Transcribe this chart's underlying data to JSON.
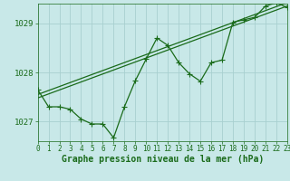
{
  "background_color": "#c8e8e8",
  "grid_color": "#a8d0d0",
  "line_color": "#1a6b1a",
  "title": "Graphe pression niveau de la mer (hPa)",
  "xlim": [
    0,
    23
  ],
  "ylim": [
    1026.6,
    1029.4
  ],
  "yticks": [
    1027,
    1028,
    1029
  ],
  "xticks": [
    0,
    1,
    2,
    3,
    4,
    5,
    6,
    7,
    8,
    9,
    10,
    11,
    12,
    13,
    14,
    15,
    16,
    17,
    18,
    19,
    20,
    21,
    22,
    23
  ],
  "series_main_x": [
    0,
    1,
    2,
    3,
    4,
    5,
    6,
    7,
    8,
    9,
    10,
    11,
    12,
    13,
    14,
    15,
    16,
    17,
    18,
    19,
    20,
    21,
    22,
    23
  ],
  "series_main_y": [
    1027.65,
    1027.3,
    1027.3,
    1027.25,
    1027.05,
    1026.95,
    1026.95,
    1026.67,
    1027.3,
    1027.83,
    1028.27,
    1028.7,
    1028.55,
    1028.2,
    1027.97,
    1027.82,
    1028.2,
    1028.25,
    1029.02,
    1029.07,
    1029.12,
    1029.35,
    1029.42,
    1029.32
  ],
  "series_trend1_x": [
    0,
    23
  ],
  "series_trend1_y": [
    1027.55,
    1029.42
  ],
  "series_trend2_x": [
    0,
    23
  ],
  "series_trend2_y": [
    1027.48,
    1029.35
  ],
  "title_fontsize": 7,
  "tick_fontsize": 5.5
}
